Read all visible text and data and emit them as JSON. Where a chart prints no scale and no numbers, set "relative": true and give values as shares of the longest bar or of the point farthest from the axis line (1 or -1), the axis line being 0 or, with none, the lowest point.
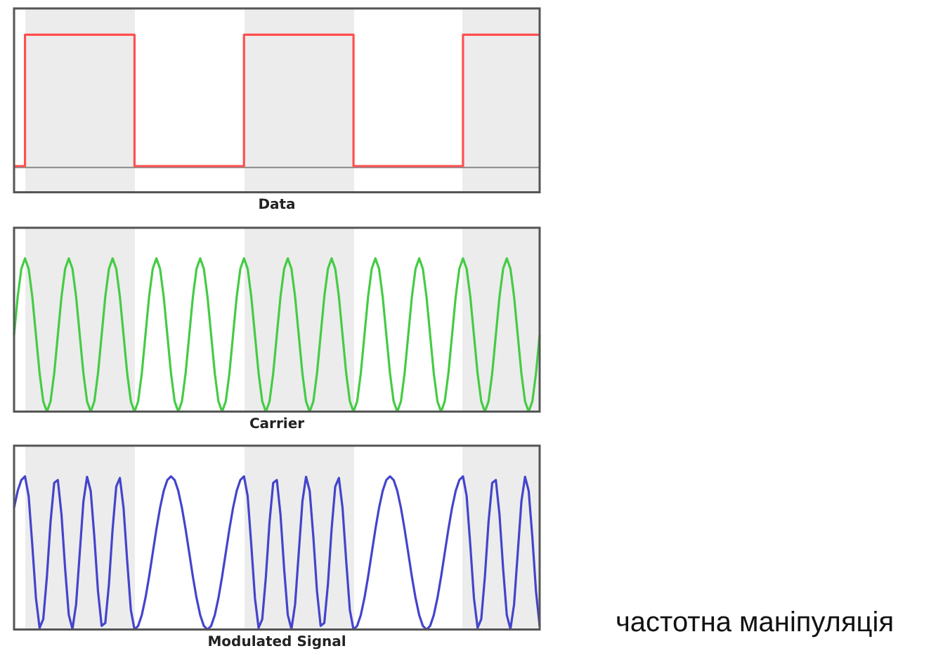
{
  "chart_data": [
    {
      "type": "step",
      "xlabel": "Data",
      "relative": true,
      "categories": [
        null,
        null,
        null,
        null,
        null,
        null,
        null,
        null,
        null,
        null,
        null,
        null,
        null,
        null,
        null,
        null,
        null,
        null,
        null,
        null,
        null,
        null,
        null,
        null,
        null,
        null,
        null,
        null,
        null,
        null,
        null,
        null,
        null,
        null,
        null,
        null,
        null,
        null,
        null,
        null,
        null,
        null,
        null,
        null,
        null,
        null,
        null,
        null,
        null,
        null,
        null,
        null,
        null,
        null,
        null,
        null,
        null,
        null,
        null,
        null,
        null,
        null,
        null,
        null,
        null,
        null,
        null,
        null,
        null,
        null,
        null,
        null,
        null,
        null,
        null,
        null,
        null,
        null,
        null,
        null,
        null,
        null,
        null,
        null,
        null,
        null,
        null,
        null,
        null,
        null,
        null,
        null,
        null,
        null,
        null,
        null,
        null,
        null,
        null,
        null,
        null,
        null,
        null,
        null,
        null,
        null,
        null,
        null,
        null,
        null,
        null,
        null,
        null,
        null,
        null,
        null,
        null,
        null,
        null,
        null,
        null,
        null,
        null,
        null,
        null,
        null,
        null,
        null,
        null,
        null,
        null,
        null,
        null,
        null,
        null,
        null,
        null,
        null,
        null,
        null,
        null,
        null,
        null,
        null,
        null
      ],
      "series": [
        {
          "color": "#ff5050",
          "values": [
            0,
            0,
            0,
            1,
            1,
            1,
            1,
            1,
            1,
            1,
            1,
            1,
            1,
            1,
            1,
            1,
            1,
            1,
            1,
            1,
            1,
            1,
            1,
            1,
            1,
            1,
            1,
            1,
            1,
            1,
            1,
            1,
            1,
            0,
            0,
            0,
            0,
            0,
            0,
            0,
            0,
            0,
            0,
            0,
            0,
            0,
            0,
            0,
            0,
            0,
            0,
            0,
            0,
            0,
            0,
            0,
            0,
            0,
            0,
            0,
            0,
            0,
            0,
            1,
            1,
            1,
            1,
            1,
            1,
            1,
            1,
            1,
            1,
            1,
            1,
            1,
            1,
            1,
            1,
            1,
            1,
            1,
            1,
            1,
            1,
            1,
            1,
            1,
            1,
            1,
            1,
            1,
            1,
            0,
            0,
            0,
            0,
            0,
            0,
            0,
            0,
            0,
            0,
            0,
            0,
            0,
            0,
            0,
            0,
            0,
            0,
            0,
            0,
            0,
            0,
            0,
            0,
            0,
            0,
            0,
            0,
            0,
            0,
            1,
            1,
            1,
            1,
            1,
            1,
            1,
            1,
            1,
            1,
            1,
            1,
            1,
            1,
            1,
            1,
            1,
            1,
            1,
            1,
            1,
            1
          ]
        }
      ]
    },
    {
      "type": "line",
      "xlabel": "Carrier",
      "relative": true,
      "categories": [
        null,
        null,
        null,
        null,
        null,
        null,
        null,
        null,
        null,
        null,
        null,
        null,
        null,
        null,
        null,
        null,
        null,
        null,
        null,
        null,
        null,
        null,
        null,
        null,
        null,
        null,
        null,
        null,
        null,
        null,
        null,
        null,
        null,
        null,
        null,
        null,
        null,
        null,
        null,
        null,
        null,
        null,
        null,
        null,
        null,
        null,
        null,
        null,
        null,
        null,
        null,
        null,
        null,
        null,
        null,
        null,
        null,
        null,
        null,
        null,
        null,
        null,
        null,
        null,
        null,
        null,
        null,
        null,
        null,
        null,
        null,
        null,
        null,
        null,
        null,
        null,
        null,
        null,
        null,
        null,
        null,
        null,
        null,
        null,
        null,
        null,
        null,
        null,
        null,
        null,
        null,
        null,
        null,
        null,
        null,
        null,
        null,
        null,
        null,
        null,
        null,
        null,
        null,
        null,
        null,
        null,
        null,
        null,
        null,
        null,
        null,
        null,
        null,
        null,
        null,
        null,
        null,
        null,
        null,
        null,
        null,
        null,
        null,
        null,
        null,
        null,
        null,
        null,
        null,
        null,
        null,
        null,
        null,
        null,
        null,
        null,
        null,
        null,
        null,
        null,
        null,
        null,
        null,
        null,
        null
      ],
      "series": [
        {
          "color": "#44cc44",
          "values": [
            0.5,
            0.75,
            0.933,
            1,
            0.933,
            0.75,
            0.5,
            0.25,
            0.067,
            0,
            0.067,
            0.25,
            0.5,
            0.75,
            0.933,
            1,
            0.933,
            0.75,
            0.5,
            0.25,
            0.067,
            0,
            0.067,
            0.25,
            0.5,
            0.75,
            0.933,
            1,
            0.933,
            0.75,
            0.5,
            0.25,
            0.067,
            0,
            0.067,
            0.25,
            0.5,
            0.75,
            0.933,
            1,
            0.933,
            0.75,
            0.5,
            0.25,
            0.067,
            0,
            0.067,
            0.25,
            0.5,
            0.75,
            0.933,
            1,
            0.933,
            0.75,
            0.5,
            0.25,
            0.067,
            0,
            0.067,
            0.25,
            0.5,
            0.75,
            0.933,
            1,
            0.933,
            0.75,
            0.5,
            0.25,
            0.067,
            0,
            0.067,
            0.25,
            0.5,
            0.75,
            0.933,
            1,
            0.933,
            0.75,
            0.5,
            0.25,
            0.067,
            0,
            0.067,
            0.25,
            0.5,
            0.75,
            0.933,
            1,
            0.933,
            0.75,
            0.5,
            0.25,
            0.067,
            0,
            0.067,
            0.25,
            0.5,
            0.75,
            0.933,
            1,
            0.933,
            0.75,
            0.5,
            0.25,
            0.067,
            0,
            0.067,
            0.25,
            0.5,
            0.75,
            0.933,
            1,
            0.933,
            0.75,
            0.5,
            0.25,
            0.067,
            0,
            0.067,
            0.25,
            0.5,
            0.75,
            0.933,
            1,
            0.933,
            0.75,
            0.5,
            0.25,
            0.067,
            0,
            0.067,
            0.25,
            0.5,
            0.75,
            0.933,
            1,
            0.933,
            0.75,
            0.5,
            0.25,
            0.067,
            0,
            0.067,
            0.25,
            0.5
          ]
        }
      ]
    },
    {
      "type": "line",
      "xlabel": "Modulated Signal",
      "relative": true,
      "annotations": [
        "частотна маніпуляція"
      ],
      "categories": [
        null,
        null,
        null,
        null,
        null,
        null,
        null,
        null,
        null,
        null,
        null,
        null,
        null,
        null,
        null,
        null,
        null,
        null,
        null,
        null,
        null,
        null,
        null,
        null,
        null,
        null,
        null,
        null,
        null,
        null,
        null,
        null,
        null,
        null,
        null,
        null,
        null,
        null,
        null,
        null,
        null,
        null,
        null,
        null,
        null,
        null,
        null,
        null,
        null,
        null,
        null,
        null,
        null,
        null,
        null,
        null,
        null,
        null,
        null,
        null,
        null,
        null,
        null,
        null,
        null,
        null,
        null,
        null,
        null,
        null,
        null,
        null,
        null,
        null,
        null,
        null,
        null,
        null,
        null,
        null,
        null,
        null,
        null,
        null,
        null,
        null,
        null,
        null,
        null,
        null,
        null,
        null,
        null,
        null,
        null,
        null,
        null,
        null,
        null,
        null,
        null,
        null,
        null,
        null,
        null,
        null,
        null,
        null,
        null,
        null,
        null,
        null,
        null,
        null,
        null,
        null,
        null,
        null,
        null,
        null,
        null,
        null,
        null,
        null,
        null,
        null,
        null,
        null,
        null,
        null,
        null,
        null,
        null,
        null,
        null,
        null,
        null,
        null,
        null,
        null,
        null,
        null,
        null,
        null,
        null
      ],
      "series": [
        {
          "color": "#4444cc",
          "values": [
            0.794,
            0.905,
            0.976,
            1,
            0.872,
            0.552,
            0.206,
            0.011,
            0.067,
            0.345,
            0.703,
            0.957,
            0.976,
            0.75,
            0.396,
            0.095,
            0.003,
            0.165,
            0.5,
            0.835,
            0.997,
            0.905,
            0.604,
            0.25,
            0.024,
            0.043,
            0.297,
            0.655,
            0.933,
            0.989,
            0.794,
            0.448,
            0.128,
            0,
            0.024,
            0.095,
            0.206,
            0.345,
            0.5,
            0.655,
            0.794,
            0.905,
            0.976,
            1,
            0.976,
            0.905,
            0.794,
            0.655,
            0.5,
            0.345,
            0.206,
            0.095,
            0.024,
            0,
            0.024,
            0.095,
            0.206,
            0.345,
            0.5,
            0.655,
            0.794,
            0.905,
            0.976,
            1,
            0.872,
            0.552,
            0.206,
            0.011,
            0.067,
            0.345,
            0.703,
            0.957,
            0.976,
            0.75,
            0.396,
            0.095,
            0.003,
            0.165,
            0.5,
            0.835,
            0.997,
            0.905,
            0.604,
            0.25,
            0.024,
            0.043,
            0.297,
            0.655,
            0.933,
            0.989,
            0.794,
            0.448,
            0.128,
            0,
            0.024,
            0.095,
            0.206,
            0.345,
            0.5,
            0.655,
            0.794,
            0.905,
            0.976,
            1,
            0.976,
            0.905,
            0.794,
            0.655,
            0.5,
            0.345,
            0.206,
            0.095,
            0.024,
            0,
            0.024,
            0.095,
            0.206,
            0.345,
            0.5,
            0.655,
            0.794,
            0.905,
            0.976,
            1,
            0.872,
            0.552,
            0.206,
            0.011,
            0.067,
            0.345,
            0.703,
            0.957,
            0.976,
            0.75,
            0.396,
            0.095,
            0.003,
            0.165,
            0.5,
            0.835,
            0.997,
            0.905,
            0.604,
            0.25,
            0.024
          ]
        }
      ]
    }
  ]
}
